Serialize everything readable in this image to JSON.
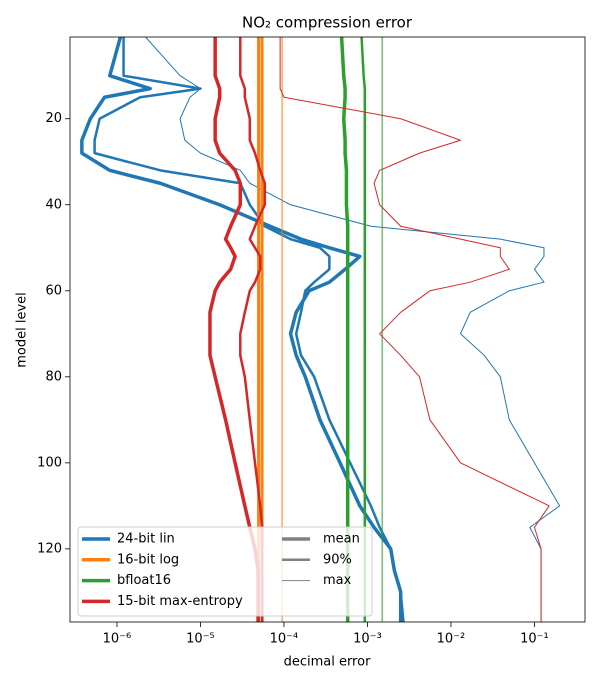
{
  "chart_data": {
    "type": "line",
    "title": "NO₂ compression error",
    "x_label": "decimal error",
    "y_label": "model level",
    "xscale": "log",
    "xlim": [
      2.74e-07,
      0.403
    ],
    "xticks": [
      {
        "value": 1e-06,
        "label": "10⁻⁶"
      },
      {
        "value": 1e-05,
        "label": "10⁻⁵"
      },
      {
        "value": 0.0001,
        "label": "10⁻⁴"
      },
      {
        "value": 0.001,
        "label": "10⁻³"
      },
      {
        "value": 0.01,
        "label": "10⁻²"
      },
      {
        "value": 0.1,
        "label": "10⁻¹"
      }
    ],
    "ylim": [
      1,
      137
    ],
    "y_inverted": true,
    "yticks": [
      20,
      40,
      60,
      80,
      100,
      120
    ],
    "legend_loc": "lower left",
    "y": [
      1,
      10,
      13,
      15,
      20,
      25,
      28,
      32,
      35,
      40,
      45,
      48,
      50,
      52,
      55,
      58,
      60,
      65,
      70,
      75,
      80,
      90,
      100,
      110,
      115,
      120,
      125,
      130,
      137
    ],
    "statistics": [
      {
        "name": "mean",
        "linewidth": 3.5
      },
      {
        "name": "90%",
        "linewidth": 2.5
      },
      {
        "name": "max",
        "linewidth": 1
      }
    ],
    "statistics_color": "#808080",
    "methods": [
      {
        "name": "24-bit lin",
        "color": "#1f77b4",
        "values": [
          [
            1.1e-06,
            8.2e-07,
            2.5e-06,
            7.1e-07,
            4.8e-07,
            3.8e-07,
            3.8e-07,
            8.2e-07,
            3.3e-06,
            1.7e-05,
            6.8e-05,
            0.00016,
            0.00035,
            0.00081,
            0.00054,
            0.00035,
            0.0002,
            0.00014,
            0.00012,
            0.00014,
            0.00018,
            0.00027,
            0.00047,
            0.00081,
            0.0012,
            0.0019,
            0.0021,
            0.0025,
            0.0025
          ],
          [
            1.2e-06,
            1.2e-06,
            1e-05,
            1.9e-06,
            6.2e-07,
            5.4e-07,
            5.4e-07,
            3.3e-06,
            3e-05,
            3.9e-05,
            5.9e-05,
            0.00012,
            0.00027,
            0.00035,
            0.00035,
            0.00023,
            0.00018,
            0.00016,
            0.00014,
            0.00016,
            0.00023,
            0.00035,
            0.00062,
            0.0011,
            0.0014,
            0.0019,
            0.0021,
            0.0025,
            0.0027
          ],
          [
            2.2e-06,
            5.7e-06,
            1e-05,
            7.5e-06,
            5.7e-06,
            6.5e-06,
            1e-05,
            3e-05,
            3.9e-05,
            0.00012,
            0.0011,
            0.039,
            0.13,
            0.13,
            0.1,
            0.13,
            0.05,
            0.017,
            0.013,
            0.025,
            0.039,
            0.05,
            0.1,
            0.2,
            0.088,
            0.12,
            0.12,
            0.12,
            0.12
          ]
        ]
      },
      {
        "name": "16-bit log",
        "color": "#ff7f0e",
        "values": [
          [
            5e-05,
            5e-05,
            5e-05,
            5e-05,
            5e-05,
            5e-05,
            5e-05,
            5e-05,
            5e-05,
            5e-05,
            5e-05,
            5e-05,
            5e-05,
            5e-05,
            5e-05,
            5e-05,
            5e-05,
            5e-05,
            5e-05,
            5e-05,
            5e-05,
            5e-05,
            5e-05,
            5e-05,
            5e-05,
            5e-05,
            5e-05,
            5e-05,
            5e-05
          ],
          [
            5.5e-05,
            5.5e-05,
            5.5e-05,
            5.5e-05,
            5.5e-05,
            5.5e-05,
            5.5e-05,
            5.5e-05,
            5.5e-05,
            5.5e-05,
            5.5e-05,
            5.5e-05,
            5.5e-05,
            5.5e-05,
            5.5e-05,
            5.5e-05,
            5.5e-05,
            5.5e-05,
            5.5e-05,
            5.5e-05,
            5.5e-05,
            5.5e-05,
            5.5e-05,
            5.5e-05,
            5.5e-05,
            5.5e-05,
            5.5e-05,
            5.5e-05,
            5.5e-05
          ],
          [
            9.5e-05,
            9.5e-05,
            9.5e-05,
            9.5e-05,
            9.5e-05,
            9.5e-05,
            9.5e-05,
            9.5e-05,
            9.5e-05,
            9.5e-05,
            9.5e-05,
            9.5e-05,
            9.5e-05,
            9.5e-05,
            9.5e-05,
            9.5e-05,
            9.5e-05,
            9.5e-05,
            9.5e-05,
            9.5e-05,
            9.5e-05,
            9.5e-05,
            9.5e-05,
            9.5e-05,
            9.5e-05,
            9.5e-05,
            9.5e-05,
            9.5e-05,
            9.5e-05
          ]
        ]
      },
      {
        "name": "bfloat16",
        "color": "#2ca02c",
        "values": [
          [
            0.00049,
            0.00052,
            0.00054,
            0.00054,
            0.00052,
            0.00054,
            0.00054,
            0.00056,
            0.00056,
            0.00056,
            0.00058,
            0.00058,
            0.00058,
            0.00058,
            0.00058,
            0.00058,
            0.00058,
            0.00058,
            0.00058,
            0.00058,
            0.00058,
            0.00058,
            0.00058,
            0.00058,
            0.00058,
            0.00058,
            0.00058,
            0.00058,
            0.00058
          ],
          [
            0.00085,
            0.0009,
            0.00093,
            0.00093,
            0.00093,
            0.00093,
            0.00093,
            0.00093,
            0.00093,
            0.00093,
            0.00093,
            0.00093,
            0.00093,
            0.00093,
            0.00093,
            0.00093,
            0.00093,
            0.00093,
            0.00093,
            0.00093,
            0.00093,
            0.00093,
            0.00093,
            0.00093,
            0.00093,
            0.00093,
            0.00093,
            0.00093,
            0.00093
          ],
          [
            0.0015,
            0.0015,
            0.0015,
            0.0015,
            0.0015,
            0.0015,
            0.0015,
            0.0015,
            0.0015,
            0.0015,
            0.0015,
            0.0015,
            0.0015,
            0.0015,
            0.0015,
            0.0015,
            0.0015,
            0.0015,
            0.0015,
            0.0015,
            0.0015,
            0.0015,
            0.0015,
            0.0015,
            0.0015,
            0.0015,
            0.0015,
            0.0015,
            0.0015
          ]
        ]
      },
      {
        "name": "15-bit max-entropy",
        "color": "#d62728",
        "values": [
          [
            1.5e-05,
            1.5e-05,
            1.7e-05,
            1.7e-05,
            1.5e-05,
            1.5e-05,
            1.7e-05,
            2.6e-05,
            3e-05,
            3e-05,
            2.3e-05,
            2e-05,
            2.3e-05,
            2.6e-05,
            2.3e-05,
            1.7e-05,
            1.5e-05,
            1.3e-05,
            1.3e-05,
            1.3e-05,
            1.5e-05,
            2e-05,
            2.6e-05,
            3.4e-05,
            3.9e-05,
            4.5e-05,
            4.9e-05,
            4.9e-05,
            4.9e-05
          ],
          [
            3e-05,
            3e-05,
            3.4e-05,
            3.4e-05,
            3.9e-05,
            3.9e-05,
            4.5e-05,
            5.2e-05,
            5.9e-05,
            5.9e-05,
            4.5e-05,
            3.9e-05,
            4.5e-05,
            5.2e-05,
            5.2e-05,
            4.5e-05,
            3.9e-05,
            3.4e-05,
            3e-05,
            3e-05,
            3.4e-05,
            3.9e-05,
            4.5e-05,
            5.2e-05,
            5.5e-05,
            5.5e-05,
            5.5e-05,
            5.5e-05,
            5.5e-05
          ],
          [
            9e-05,
            9e-05,
            9e-05,
            0.0001,
            0.0025,
            0.013,
            0.0042,
            0.0014,
            0.0012,
            0.0014,
            0.0025,
            0.013,
            0.039,
            0.039,
            0.05,
            0.017,
            0.0056,
            0.0025,
            0.0014,
            0.0025,
            0.0042,
            0.0056,
            0.013,
            0.15,
            0.1,
            0.12,
            0.12,
            0.12,
            0.12
          ]
        ]
      }
    ]
  }
}
